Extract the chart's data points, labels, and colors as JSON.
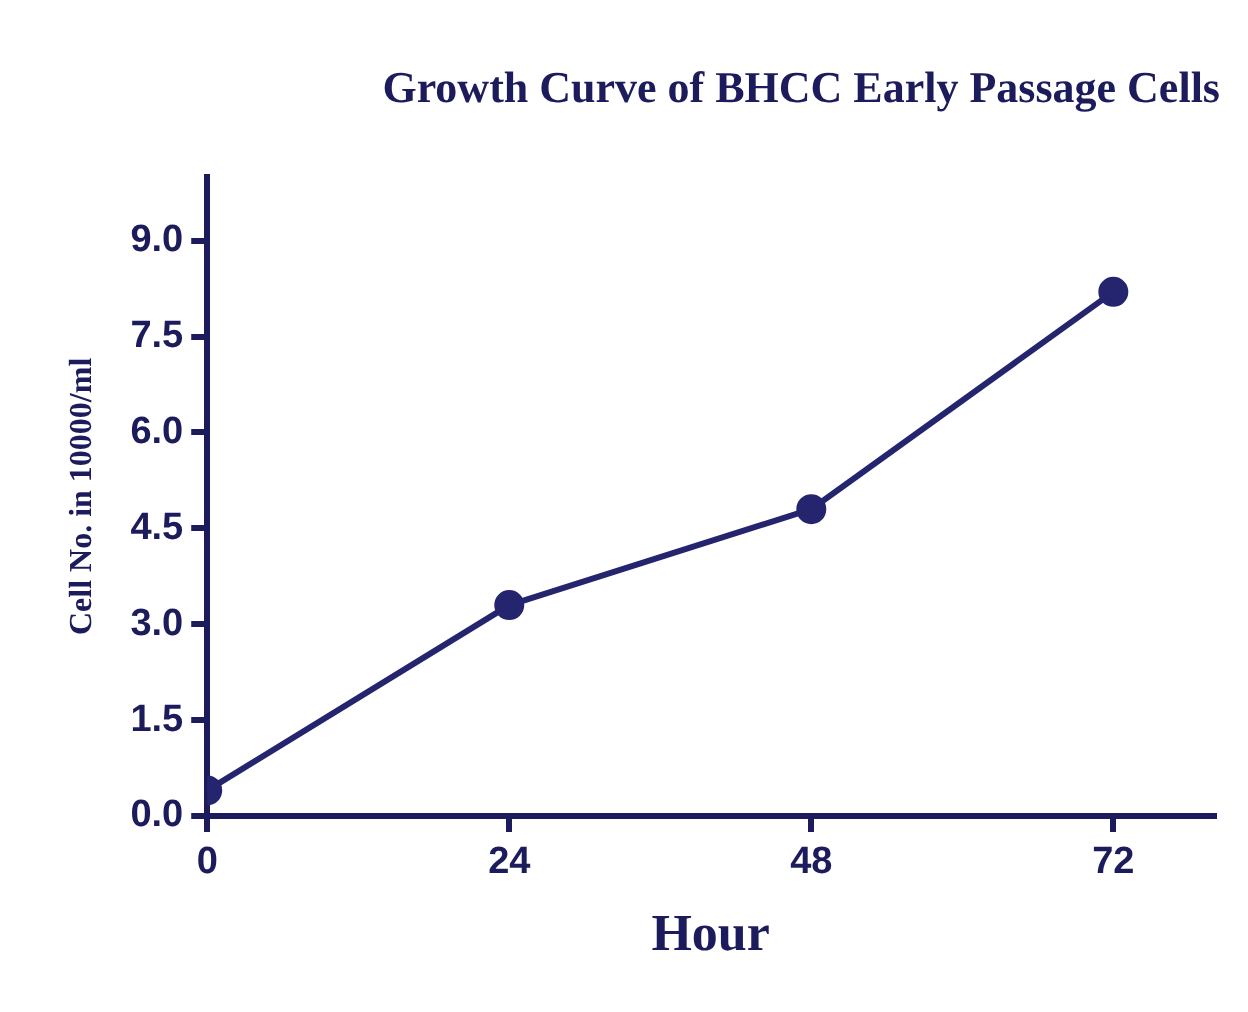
{
  "chart_data": {
    "type": "line",
    "title": "Growth Curve of BHCC Early Passage Cells",
    "xlabel": "Hour",
    "ylabel": "Cell No. in 10000/ml",
    "x": [
      0,
      24,
      48,
      72
    ],
    "series": [
      {
        "color": "#25246e",
        "values": [
          0.4,
          3.3,
          4.8,
          8.2
        ]
      }
    ],
    "xlim": [
      0,
      80
    ],
    "xticks": [
      0,
      24,
      48,
      72
    ],
    "ylim": [
      0,
      10
    ],
    "yticks": [
      {
        "value": 0,
        "label": "0.0"
      },
      {
        "value": 1.5,
        "label": "1.5"
      },
      {
        "value": 3,
        "label": "3.0"
      },
      {
        "value": 4.5,
        "label": "4.5"
      },
      {
        "value": 6,
        "label": "6.0"
      },
      {
        "value": 7.5,
        "label": "7.5"
      },
      {
        "value": 9,
        "label": "9.0"
      }
    ],
    "grid": false,
    "legend": false,
    "marker": "circle",
    "line_style": "solid"
  }
}
